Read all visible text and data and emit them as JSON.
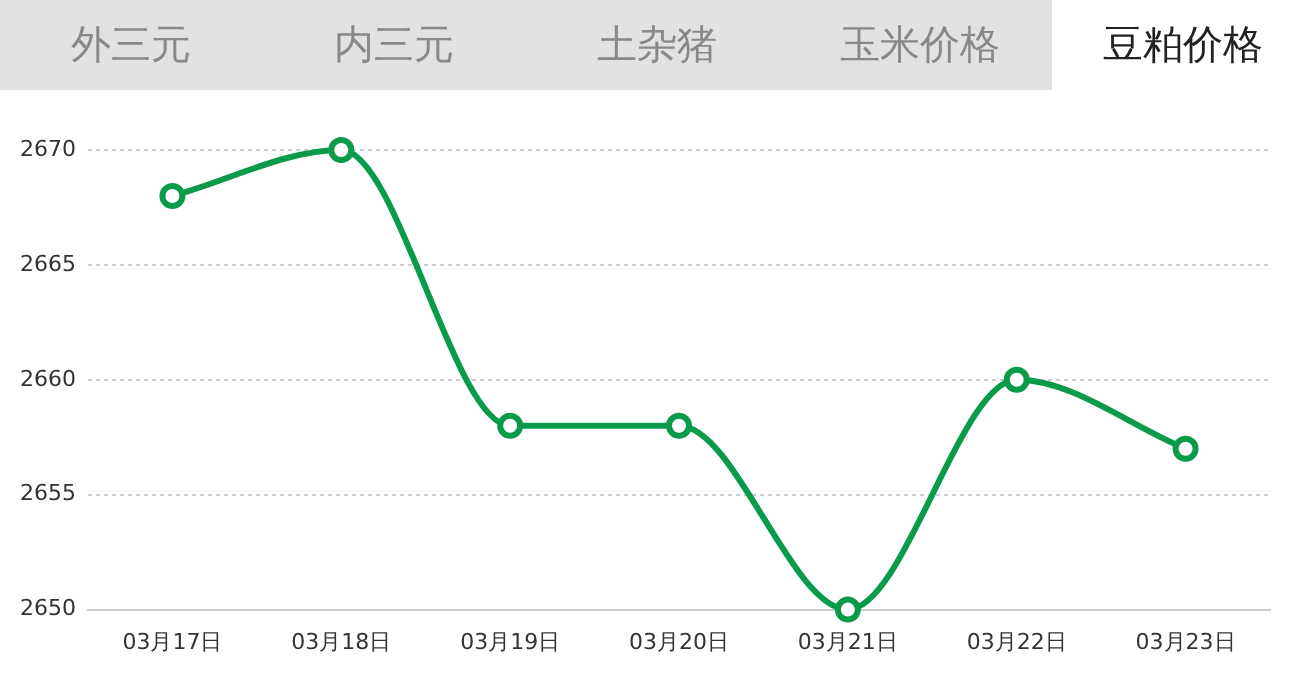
{
  "chart_data": {
    "type": "line",
    "annotations": [
      "外三元",
      "内三元",
      "土杂猪",
      "玉米价格",
      "豆粕价格"
    ],
    "categories": [
      "03月17日",
      "03月18日",
      "03月19日",
      "03月20日",
      "03月21日",
      "03月22日",
      "03月23日"
    ],
    "series": [
      {
        "color": "#0a9b4a",
        "values": [
          2668,
          2670,
          2658,
          2658,
          2650,
          2660,
          2657
        ]
      }
    ],
    "ylim": [
      2650,
      2670
    ],
    "yticks": [
      2650,
      2655,
      2660,
      2665,
      2670
    ],
    "grid": "y",
    "legend": false,
    "marker": "circle",
    "line_style": "solid"
  }
}
